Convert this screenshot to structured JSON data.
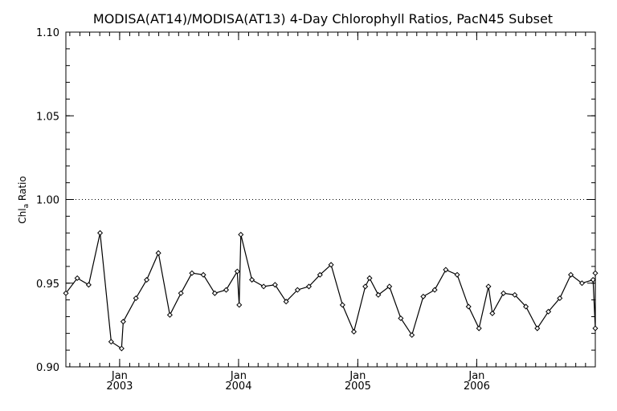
{
  "chart_data": {
    "type": "line",
    "title": "MODISA(AT14)/MODISA(AT13) 4-Day Chlorophyll Ratios, PacN45 Subset",
    "ylabel_main": "Chl",
    "ylabel_sub": "a",
    "ylabel_tail": " Ratio",
    "ylim": [
      0.9,
      1.1
    ],
    "yticks": [
      {
        "value": 0.9,
        "label": "0.90"
      },
      {
        "value": 0.95,
        "label": "0.95"
      },
      {
        "value": 1.0,
        "label": "1.00"
      },
      {
        "value": 1.05,
        "label": "1.05"
      },
      {
        "value": 1.1,
        "label": "1.10"
      }
    ],
    "xlim": [
      "2002-07-20",
      "2006-12-31"
    ],
    "xticks": [
      {
        "date": "2003-01-01",
        "month": "Jan",
        "year": "2003"
      },
      {
        "date": "2004-01-01",
        "month": "Jan",
        "year": "2004"
      },
      {
        "date": "2005-01-01",
        "month": "Jan",
        "year": "2005"
      },
      {
        "date": "2006-01-01",
        "month": "Jan",
        "year": "2006"
      }
    ],
    "reference_line": {
      "value": 1.0,
      "style": "dotted"
    },
    "series": [
      {
        "points": [
          [
            "2002-07-20",
            0.944
          ],
          [
            "2002-08-24",
            0.953
          ],
          [
            "2002-09-28",
            0.949
          ],
          [
            "2002-11-02",
            0.98
          ],
          [
            "2002-12-06",
            0.915
          ],
          [
            "2003-01-07",
            0.911
          ],
          [
            "2003-01-12",
            0.927
          ],
          [
            "2003-02-20",
            0.941
          ],
          [
            "2003-03-25",
            0.952
          ],
          [
            "2003-04-30",
            0.968
          ],
          [
            "2003-06-04",
            0.931
          ],
          [
            "2003-07-08",
            0.944
          ],
          [
            "2003-08-11",
            0.956
          ],
          [
            "2003-09-15",
            0.955
          ],
          [
            "2003-10-20",
            0.944
          ],
          [
            "2003-11-24",
            0.946
          ],
          [
            "2003-12-28",
            0.957
          ],
          [
            "2004-01-03",
            0.937
          ],
          [
            "2004-01-08",
            0.979
          ],
          [
            "2004-02-11",
            0.952
          ],
          [
            "2004-03-18",
            0.948
          ],
          [
            "2004-04-22",
            0.949
          ],
          [
            "2004-05-26",
            0.939
          ],
          [
            "2004-06-30",
            0.946
          ],
          [
            "2004-08-04",
            0.948
          ],
          [
            "2004-09-07",
            0.955
          ],
          [
            "2004-10-11",
            0.961
          ],
          [
            "2004-11-15",
            0.937
          ],
          [
            "2004-12-20",
            0.921
          ],
          [
            "2005-01-24",
            0.948
          ],
          [
            "2005-02-06",
            0.953
          ],
          [
            "2005-03-05",
            0.943
          ],
          [
            "2005-04-08",
            0.948
          ],
          [
            "2005-05-13",
            0.929
          ],
          [
            "2005-06-16",
            0.919
          ],
          [
            "2005-07-21",
            0.942
          ],
          [
            "2005-08-25",
            0.946
          ],
          [
            "2005-09-28",
            0.958
          ],
          [
            "2005-11-02",
            0.955
          ],
          [
            "2005-12-07",
            0.936
          ],
          [
            "2006-01-08",
            0.923
          ],
          [
            "2006-02-06",
            0.948
          ],
          [
            "2006-02-18",
            0.932
          ],
          [
            "2006-03-24",
            0.944
          ],
          [
            "2006-04-28",
            0.943
          ],
          [
            "2006-06-01",
            0.936
          ],
          [
            "2006-07-06",
            0.923
          ],
          [
            "2006-08-09",
            0.933
          ],
          [
            "2006-09-13",
            0.941
          ],
          [
            "2006-10-17",
            0.955
          ],
          [
            "2006-11-20",
            0.95
          ],
          [
            "2006-12-24",
            0.952
          ],
          [
            "2007-01-27",
            0.923
          ],
          [
            "2007-02-26",
            0.956
          ]
        ]
      }
    ]
  }
}
